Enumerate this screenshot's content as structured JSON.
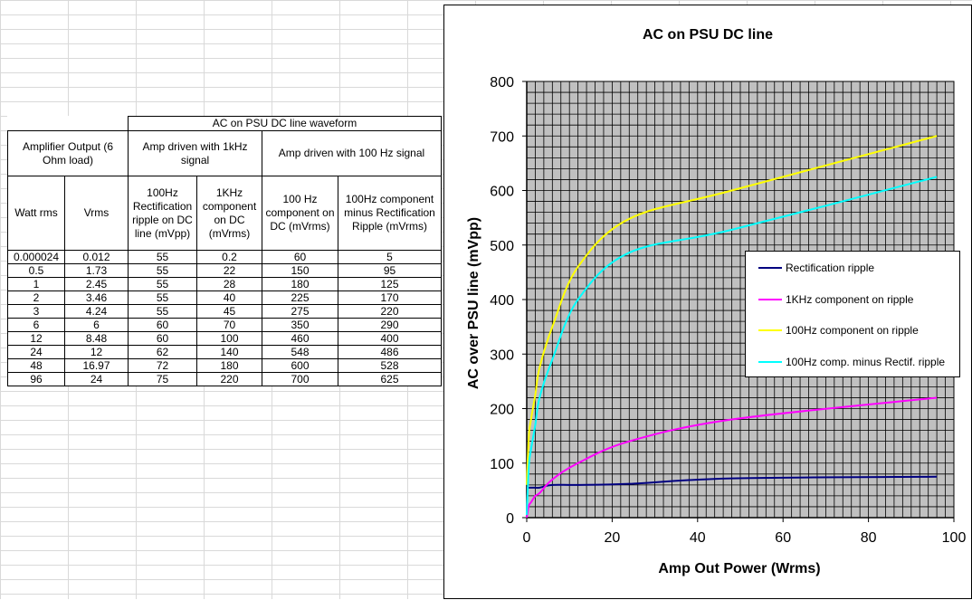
{
  "table": {
    "group_header": "AC on PSU DC line waveform",
    "col_amp_output": "Amplifier Output (6 Ohm load)",
    "col_1khz_group": "Amp driven with 1kHz signal",
    "col_100hz_group": "Amp driven with 100 Hz signal",
    "sub_headers": [
      "Watt rms",
      "Vrms",
      "100Hz Rectification ripple on DC line (mVpp)",
      "1KHz component on DC (mVrms)",
      "100 Hz component on DC (mVrms)",
      "100Hz component minus Rectification Ripple (mVrms)"
    ],
    "rows": [
      [
        "0.000024",
        "0.012",
        "55",
        "0.2",
        "60",
        "5"
      ],
      [
        "0.5",
        "1.73",
        "55",
        "22",
        "150",
        "95"
      ],
      [
        "1",
        "2.45",
        "55",
        "28",
        "180",
        "125"
      ],
      [
        "2",
        "3.46",
        "55",
        "40",
        "225",
        "170"
      ],
      [
        "3",
        "4.24",
        "55",
        "45",
        "275",
        "220"
      ],
      [
        "6",
        "6",
        "60",
        "70",
        "350",
        "290"
      ],
      [
        "12",
        "8.48",
        "60",
        "100",
        "460",
        "400"
      ],
      [
        "24",
        "12",
        "62",
        "140",
        "548",
        "486"
      ],
      [
        "48",
        "16.97",
        "72",
        "180",
        "600",
        "528"
      ],
      [
        "96",
        "24",
        "75",
        "220",
        "700",
        "625"
      ]
    ]
  },
  "chart_data": {
    "type": "line",
    "title": "AC on PSU DC line",
    "xlabel": "Amp Out Power (Wrms)",
    "ylabel": "AC over PSU line (mVpp)",
    "xlim": [
      0,
      100
    ],
    "ylim": [
      0,
      800
    ],
    "xticks": [
      "0",
      "20",
      "40",
      "60",
      "80",
      "100"
    ],
    "yticks": [
      "0",
      "100",
      "200",
      "300",
      "400",
      "500",
      "600",
      "700",
      "800"
    ],
    "grid": true,
    "plot_background": "#c0c0c0",
    "legend_position": "right",
    "x": [
      2.4e-05,
      0.5,
      1,
      2,
      3,
      6,
      12,
      24,
      48,
      96
    ],
    "series": [
      {
        "name": "Rectification ripple",
        "color": "#000080",
        "values": [
          55,
          55,
          55,
          55,
          55,
          60,
          60,
          62,
          72,
          75
        ]
      },
      {
        "name": "1KHz component on ripple",
        "color": "#ff00ff",
        "values": [
          0.2,
          22,
          28,
          40,
          45,
          70,
          100,
          140,
          180,
          220
        ]
      },
      {
        "name": "100Hz component on ripple",
        "color": "#ffff00",
        "values": [
          60,
          150,
          180,
          225,
          275,
          350,
          460,
          548,
          600,
          700
        ]
      },
      {
        "name": "100Hz comp. minus Rectif. ripple",
        "color": "#00ffff",
        "values": [
          5,
          95,
          125,
          170,
          220,
          290,
          400,
          486,
          528,
          625
        ]
      }
    ]
  }
}
